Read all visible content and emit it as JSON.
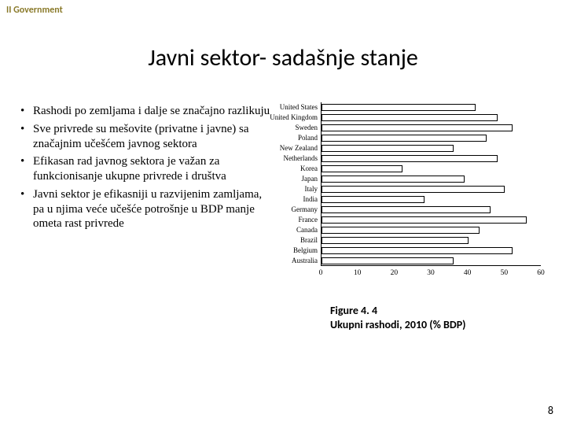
{
  "header_tag": "II Government",
  "title": "Javni sektor- sadašnje stanje",
  "bullets": [
    "Rashodi po zemljama i dalje se značajno razlikuju",
    "Sve privrede su mešovite (privatne i javne) sa značajnim učešćem javnog sektora",
    "Efikasan rad javnog sektora je važan za funkcionisanje ukupne privrede i društva",
    "Javni sektor je efikasniji u razvijenim zamljama, pa u njima veće učešće potrošnje u BDP manje ometa rast privrede"
  ],
  "chart": {
    "type": "bar-horizontal",
    "xlim": [
      0,
      60
    ],
    "xtick_step": 10,
    "xticks": [
      0,
      10,
      20,
      30,
      40,
      50,
      60
    ],
    "background_color": "#ffffff",
    "bar_fill": "#ffffff",
    "bar_border": "#000000",
    "axis_color": "#000000",
    "label_fontsize": 9,
    "tick_fontsize": 9.5,
    "categories": [
      "United States",
      "United Kingdom",
      "Sweden",
      "Poland",
      "New Zealand",
      "Netherlands",
      "Korea",
      "Japan",
      "Italy",
      "India",
      "Germany",
      "France",
      "Canada",
      "Brazil",
      "Belgium",
      "Australia"
    ],
    "values": [
      42,
      48,
      52,
      45,
      36,
      48,
      22,
      39,
      50,
      28,
      46,
      56,
      43,
      40,
      52,
      36
    ]
  },
  "caption_line1": "Figure 4. 4",
  "caption_line2": "Ukupni rashodi, 2010 (% BDP)",
  "page_number": "8"
}
